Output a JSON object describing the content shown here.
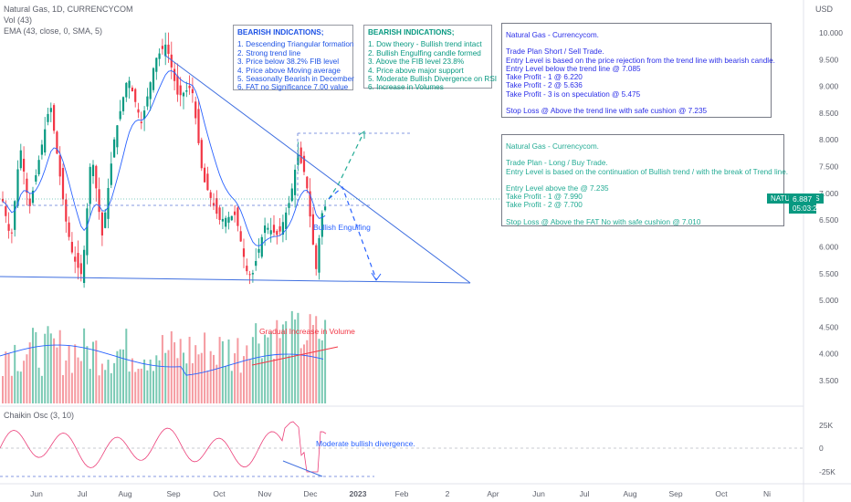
{
  "legend": {
    "title": "Natural Gas, 1D, CURRENCYCOM",
    "vol": "Vol (43)",
    "ema": "EMA (43, close, 0, SMA, 5)",
    "chaikin": "Chaikin Osc (3, 10)"
  },
  "currency": "USD",
  "bearish_box": {
    "title": "BEARISH INDICATIONS;",
    "items": [
      "1.    Descending Triangular formation",
      "2.    Strong trend line",
      "3.    Price below 38.2% FIB level",
      "4.    Price above Moving average",
      "5.    Seasonally Bearish in December",
      "6.    FAT no Significance 7.00 value"
    ]
  },
  "bullish_box": {
    "title": "BEARISH INDICATIONS;",
    "items": [
      "1.    Dow theory - Bullish trend intact",
      "2.    Bullish Engulfing candle formed",
      "3.    Above the FIB level 23.8%",
      "4.    Price above major support",
      "5.    Moderate Bullish Divergence on RSI",
      "6.    Increase in Volumes"
    ]
  },
  "plan_short": {
    "lines": [
      "Natural Gas - Currencycom.",
      "",
      "Trade Plan   Short / Sell Trade.",
      "Entry Level is based on the price rejection from the trend line with bearish candle.",
      "Entry Level below the trend line @ 7.085",
      "Take Profit - 1 @ 6.220",
      "Take Profit - 2 @ 5.636",
      "Take Profit - 3 is on speculation @ 5.475",
      "",
      "Stop Loss @ Above the trend line with safe cushion @ 7.235"
    ]
  },
  "plan_long": {
    "lines": [
      "Natural Gas - Currencycom.",
      "",
      "Trade Plan  -  Long / Buy Trade.",
      "Entry Level is based on the continuation of Bullish trend / with the break of Trend line.",
      "",
      "Entry Level above the  @ 7.235",
      "Take Profit - 1 @ 7.990",
      "Take Profit - 2 @ 7.700",
      "",
      "Stop Loss @ Above the FAT No with safe cushion @ 7.010"
    ]
  },
  "annotations": {
    "engulfing": "Bullish Engulfing",
    "volume": "Gradual Increase in Volume",
    "divergence": "Moderate bullish divergence."
  },
  "price_tag": {
    "symbol": "NATURALGAS",
    "price": "6.887",
    "countdown": "05:03:23"
  },
  "colors": {
    "up": "#089981",
    "down": "#f23645",
    "ema": "#2962ff",
    "osc": "#ec407a",
    "trend": "#3f6fe0"
  },
  "chart_data": {
    "type": "candlestick",
    "price_axis": {
      "min": 3.25,
      "max": 10.0,
      "ticks": [
        "10.000",
        "9.500",
        "9.000",
        "8.500",
        "8.000",
        "7.500",
        "7.000",
        "6.500",
        "6.000",
        "5.500",
        "5.000",
        "4.500",
        "4.000",
        "3.500"
      ]
    },
    "osc_axis": {
      "ticks": [
        "25K",
        "0",
        "-25K"
      ]
    },
    "x_ticks": [
      "Jun",
      "Jul",
      "Aug",
      "Sep",
      "Oct",
      "Nov",
      "Dec",
      "2023",
      "Feb",
      "2",
      "Apr",
      "Jun",
      "Jul",
      "Aug",
      "Sep",
      "Oct",
      "Ni"
    ],
    "last_price": 6.887,
    "ema_period": 43,
    "levels": {
      "target_long": 8.1,
      "dash_level": 6.65,
      "support": 5.36
    }
  }
}
